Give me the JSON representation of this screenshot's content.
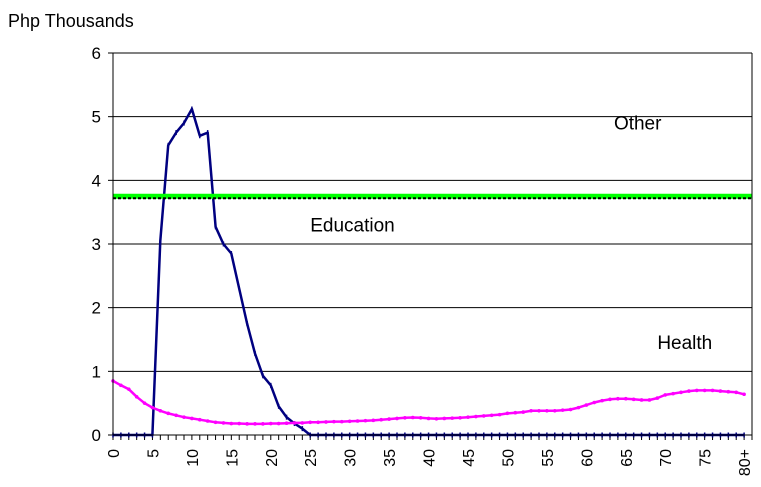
{
  "chart_data": {
    "type": "line",
    "ylabel": "Php Thousands",
    "ylim": [
      0,
      6
    ],
    "yticks": [
      "0",
      "1",
      "2",
      "3",
      "4",
      "5",
      "6"
    ],
    "xlim": [
      0,
      81
    ],
    "xticks": [
      "0",
      "5",
      "10",
      "15",
      "20",
      "25",
      "30",
      "35",
      "40",
      "45",
      "50",
      "55",
      "60",
      "65",
      "70",
      "75",
      "80+"
    ],
    "xtick_values": [
      0,
      5,
      10,
      15,
      20,
      25,
      30,
      35,
      40,
      45,
      50,
      55,
      60,
      65,
      70,
      75,
      80
    ],
    "grid": "horizontal",
    "annotations": [
      {
        "text": "Other",
        "x": 63.5,
        "y": 4.8
      },
      {
        "text": "Education",
        "x": 25,
        "y": 3.2
      },
      {
        "text": "Health",
        "x": 69,
        "y": 1.35
      }
    ],
    "series": [
      {
        "key": "education",
        "color": "#000080",
        "marker": "tick",
        "x": [
          0,
          1,
          2,
          3,
          4,
          5,
          6,
          7,
          8,
          9,
          10,
          11,
          12,
          13,
          14,
          15,
          16,
          17,
          18,
          19,
          20,
          21,
          22,
          23,
          24,
          25,
          26,
          27,
          28,
          29,
          30,
          31,
          32,
          33,
          34,
          35,
          36,
          37,
          38,
          39,
          40,
          41,
          42,
          43,
          44,
          45,
          46,
          47,
          48,
          49,
          50,
          51,
          52,
          53,
          54,
          55,
          56,
          57,
          58,
          59,
          60,
          61,
          62,
          63,
          64,
          65,
          66,
          67,
          68,
          69,
          70,
          71,
          72,
          73,
          74,
          75,
          76,
          77,
          78,
          79,
          80
        ],
        "values": [
          0,
          0,
          0,
          0,
          0,
          0,
          3.05,
          4.55,
          4.75,
          4.9,
          5.12,
          4.7,
          4.75,
          3.27,
          3.0,
          2.85,
          2.3,
          1.75,
          1.28,
          0.93,
          0.78,
          0.45,
          0.28,
          0.18,
          0.1,
          0,
          0,
          0,
          0,
          0,
          0,
          0,
          0,
          0,
          0,
          0,
          0,
          0,
          0,
          0,
          0,
          0,
          0,
          0,
          0,
          0,
          0,
          0,
          0,
          0,
          0,
          0,
          0,
          0,
          0,
          0,
          0,
          0,
          0,
          0,
          0,
          0,
          0,
          0,
          0,
          0,
          0,
          0,
          0,
          0,
          0,
          0,
          0,
          0,
          0,
          0,
          0,
          0,
          0,
          0,
          0
        ]
      },
      {
        "key": "health",
        "color": "#ff00ff",
        "marker": "dot",
        "x": [
          0,
          1,
          2,
          3,
          4,
          5,
          6,
          7,
          8,
          9,
          10,
          11,
          12,
          13,
          14,
          15,
          16,
          17,
          18,
          19,
          20,
          21,
          22,
          23,
          24,
          25,
          26,
          27,
          28,
          29,
          30,
          31,
          32,
          33,
          34,
          35,
          36,
          37,
          38,
          39,
          40,
          41,
          42,
          43,
          44,
          45,
          46,
          47,
          48,
          49,
          50,
          51,
          52,
          53,
          54,
          55,
          56,
          57,
          58,
          59,
          60,
          61,
          62,
          63,
          64,
          65,
          66,
          67,
          68,
          69,
          70,
          71,
          72,
          73,
          74,
          75,
          76,
          77,
          78,
          79,
          80
        ],
        "values": [
          0.85,
          0.78,
          0.72,
          0.6,
          0.5,
          0.43,
          0.38,
          0.34,
          0.31,
          0.28,
          0.26,
          0.24,
          0.22,
          0.2,
          0.19,
          0.18,
          0.18,
          0.175,
          0.175,
          0.175,
          0.18,
          0.18,
          0.185,
          0.19,
          0.19,
          0.2,
          0.2,
          0.205,
          0.21,
          0.21,
          0.215,
          0.22,
          0.225,
          0.23,
          0.24,
          0.25,
          0.26,
          0.27,
          0.275,
          0.27,
          0.26,
          0.255,
          0.26,
          0.265,
          0.27,
          0.28,
          0.29,
          0.3,
          0.31,
          0.32,
          0.34,
          0.35,
          0.36,
          0.38,
          0.38,
          0.38,
          0.38,
          0.39,
          0.4,
          0.43,
          0.47,
          0.51,
          0.54,
          0.56,
          0.57,
          0.57,
          0.56,
          0.55,
          0.55,
          0.58,
          0.63,
          0.65,
          0.67,
          0.69,
          0.7,
          0.7,
          0.7,
          0.69,
          0.68,
          0.67,
          0.64
        ]
      },
      {
        "key": "other",
        "color": "#00ff00",
        "marker": "none",
        "x": [
          0,
          81
        ],
        "values": [
          3.75,
          3.75
        ]
      },
      {
        "key": "other-reference",
        "color": "#000000",
        "marker": "dashed",
        "x": [
          0,
          81
        ],
        "values": [
          3.72,
          3.72
        ]
      }
    ]
  }
}
